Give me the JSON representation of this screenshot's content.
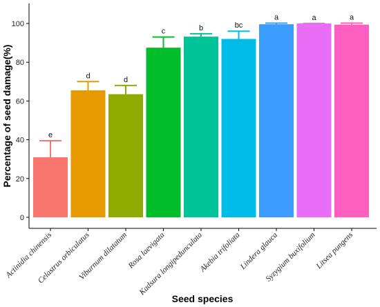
{
  "chart_data": {
    "type": "bar",
    "title": "",
    "xlabel": "Seed species",
    "ylabel": "Percentage of seed damage(%)",
    "ylim": [
      0,
      110
    ],
    "yticks": [
      0,
      20,
      40,
      60,
      80,
      100
    ],
    "grid": false,
    "legend": "none",
    "categories": [
      "Actinidia chinensis",
      "Celastrus orbiculatus",
      "Viburnum dilatatum",
      "Rosa laevigata",
      "Kadsura longipedunculata",
      "Akebia trifoliata",
      "Lindera glauca",
      "Syzygium buxifolium",
      "Litsea pungens"
    ],
    "values": [
      31,
      65.5,
      63.5,
      87.5,
      93.2,
      92,
      99.6,
      100,
      99.4
    ],
    "error": [
      8.5,
      4.5,
      4.5,
      5.5,
      1.5,
      4,
      0.6,
      0,
      0.8
    ],
    "significance": [
      "e",
      "d",
      "d",
      "c",
      "b",
      "bc",
      "a",
      "a",
      "a"
    ],
    "colors": [
      "#F8766D",
      "#E69A00",
      "#8FAA00",
      "#00BE2A",
      "#00C398",
      "#00BCE9",
      "#3D9CFF",
      "#E86EF6",
      "#FF5FBE"
    ]
  }
}
